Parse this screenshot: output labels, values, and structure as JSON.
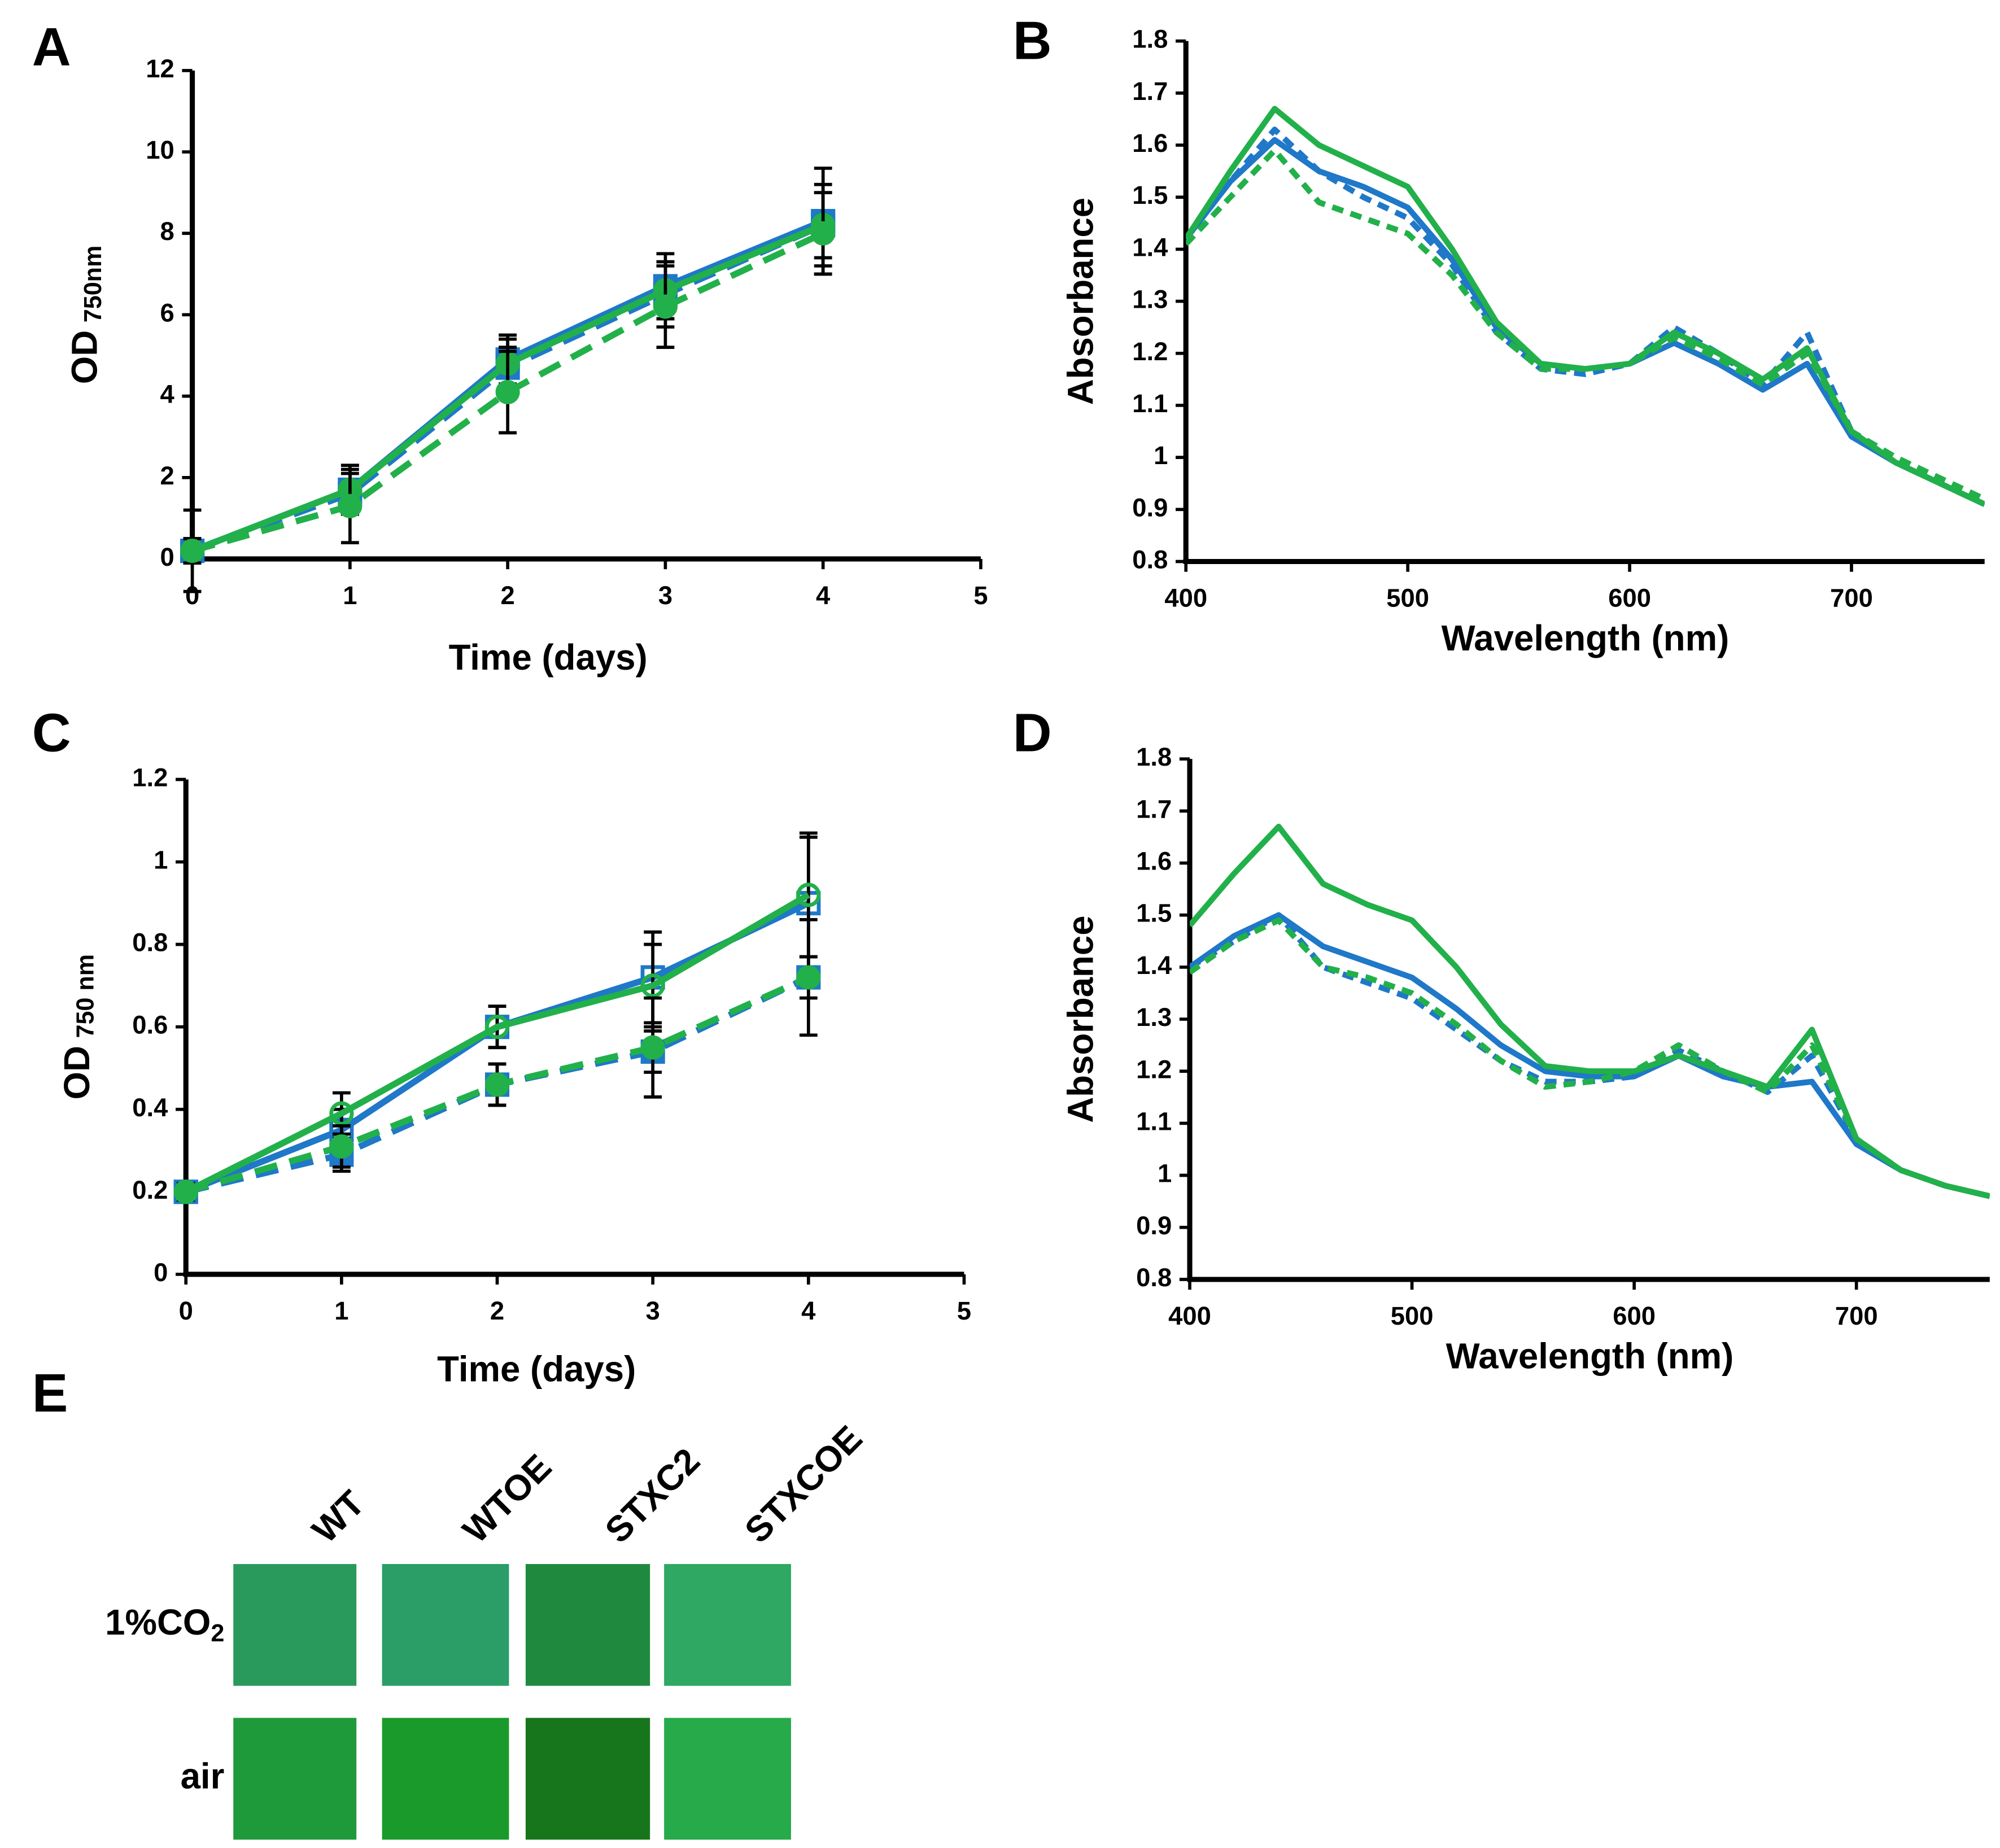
{
  "chart_data": [
    {
      "panel": "A",
      "type": "line",
      "x_label": "Time (days)",
      "y_label": "OD",
      "y_label_sub": "750nm",
      "x": [
        0,
        1,
        2,
        3,
        4
      ],
      "xlim": [
        0,
        5
      ],
      "xticks": [
        0,
        1,
        2,
        3,
        4,
        5
      ],
      "ylim": [
        0,
        12
      ],
      "yticks": [
        0,
        2,
        4,
        6,
        8,
        10,
        12
      ],
      "series": [
        {
          "color": "#1f78c8",
          "dash": false,
          "marker": "square",
          "filled": true,
          "values": [
            0.2,
            1.7,
            4.9,
            6.7,
            8.3
          ],
          "errors": [
            1.0,
            0.6,
            0.6,
            0.8,
            1.3
          ]
        },
        {
          "color": "#1f78c8",
          "dash": true,
          "marker": "square",
          "filled": true,
          "values": [
            0.2,
            1.6,
            4.7,
            6.5,
            8.2
          ],
          "errors": [
            0.3,
            0.5,
            0.5,
            0.8,
            1.0
          ]
        },
        {
          "color": "#22b04a",
          "dash": false,
          "marker": "circle",
          "filled": true,
          "values": [
            0.2,
            1.7,
            4.8,
            6.6,
            8.2
          ],
          "errors": [
            0.3,
            0.6,
            0.6,
            0.7,
            0.8
          ]
        },
        {
          "color": "#22b04a",
          "dash": true,
          "marker": "circle",
          "filled": true,
          "values": [
            0.2,
            1.3,
            4.1,
            6.2,
            8.0
          ],
          "errors": [
            0.3,
            0.9,
            1.0,
            1.0,
            1.0
          ]
        }
      ]
    },
    {
      "panel": "B",
      "type": "line",
      "x_label": "Wavelength (nm)",
      "y_label": "Absorbance",
      "x": [
        400,
        420,
        440,
        460,
        480,
        500,
        520,
        540,
        560,
        580,
        600,
        620,
        640,
        660,
        680,
        700,
        720,
        740,
        760
      ],
      "xlim": [
        400,
        760
      ],
      "xticks": [
        400,
        500,
        600,
        700
      ],
      "ylim": [
        0.8,
        1.8
      ],
      "yticks": [
        0.8,
        0.9,
        1,
        1.1,
        1.2,
        1.3,
        1.4,
        1.5,
        1.6,
        1.7,
        1.8
      ],
      "series": [
        {
          "color": "#1f78c8",
          "dash": false,
          "values": [
            1.42,
            1.53,
            1.61,
            1.55,
            1.52,
            1.48,
            1.38,
            1.25,
            1.18,
            1.17,
            1.18,
            1.22,
            1.18,
            1.13,
            1.18,
            1.04,
            0.99,
            0.95,
            0.91
          ]
        },
        {
          "color": "#1f78c8",
          "dash": true,
          "values": [
            1.42,
            1.53,
            1.63,
            1.55,
            1.5,
            1.46,
            1.37,
            1.24,
            1.17,
            1.16,
            1.18,
            1.25,
            1.2,
            1.14,
            1.24,
            1.05,
            0.99,
            0.95,
            0.91
          ]
        },
        {
          "color": "#22b04a",
          "dash": false,
          "values": [
            1.42,
            1.55,
            1.67,
            1.6,
            1.56,
            1.52,
            1.4,
            1.26,
            1.18,
            1.17,
            1.18,
            1.24,
            1.2,
            1.15,
            1.21,
            1.05,
            0.99,
            0.95,
            0.91
          ]
        },
        {
          "color": "#22b04a",
          "dash": true,
          "values": [
            1.41,
            1.5,
            1.59,
            1.49,
            1.46,
            1.43,
            1.35,
            1.24,
            1.17,
            1.17,
            1.18,
            1.23,
            1.19,
            1.14,
            1.2,
            1.05,
            1.0,
            0.96,
            0.92
          ]
        }
      ]
    },
    {
      "panel": "C",
      "type": "line",
      "x_label": "Time (days)",
      "y_label": "OD",
      "y_label_sub": "750 nm",
      "x": [
        0,
        1,
        2,
        3,
        4
      ],
      "xlim": [
        0,
        5
      ],
      "xticks": [
        0,
        1,
        2,
        3,
        4,
        5
      ],
      "ylim": [
        0,
        1.2
      ],
      "yticks": [
        0,
        0.2,
        0.4,
        0.6,
        0.8,
        1,
        1.2
      ],
      "series": [
        {
          "color": "#1f78c8",
          "dash": false,
          "marker": "square",
          "filled": false,
          "values": [
            0.2,
            0.35,
            0.6,
            0.72,
            0.9
          ],
          "errors": [
            0.02,
            0.05,
            0.05,
            0.11,
            0.16
          ]
        },
        {
          "color": "#1f78c8",
          "dash": true,
          "marker": "square",
          "filled": true,
          "values": [
            0.2,
            0.29,
            0.46,
            0.54,
            0.72
          ],
          "errors": [
            0.02,
            0.04,
            0.05,
            0.05,
            0.05
          ]
        },
        {
          "color": "#22b04a",
          "dash": false,
          "marker": "circle",
          "filled": false,
          "values": [
            0.2,
            0.39,
            0.6,
            0.7,
            0.92
          ],
          "errors": [
            0.02,
            0.05,
            0.05,
            0.1,
            0.15
          ]
        },
        {
          "color": "#22b04a",
          "dash": true,
          "marker": "circle",
          "filled": true,
          "values": [
            0.2,
            0.31,
            0.46,
            0.55,
            0.72
          ],
          "errors": [
            0.02,
            0.05,
            0.05,
            0.12,
            0.14
          ]
        }
      ]
    },
    {
      "panel": "D",
      "type": "line",
      "x_label": "Wavelength (nm)",
      "y_label": "Absorbance",
      "x": [
        400,
        420,
        440,
        460,
        480,
        500,
        520,
        540,
        560,
        580,
        600,
        620,
        640,
        660,
        680,
        700,
        720,
        740,
        760
      ],
      "xlim": [
        400,
        760
      ],
      "xticks": [
        400,
        500,
        600,
        700
      ],
      "ylim": [
        0.8,
        1.8
      ],
      "yticks": [
        0.8,
        0.9,
        1,
        1.1,
        1.2,
        1.3,
        1.4,
        1.5,
        1.6,
        1.7,
        1.8
      ],
      "series": [
        {
          "color": "#1f78c8",
          "dash": false,
          "values": [
            1.4,
            1.46,
            1.5,
            1.44,
            1.41,
            1.38,
            1.32,
            1.25,
            1.2,
            1.19,
            1.19,
            1.23,
            1.19,
            1.17,
            1.18,
            1.06,
            1.01,
            0.98,
            0.96
          ]
        },
        {
          "color": "#1f78c8",
          "dash": true,
          "values": [
            1.4,
            1.45,
            1.5,
            1.4,
            1.37,
            1.34,
            1.28,
            1.22,
            1.18,
            1.18,
            1.19,
            1.24,
            1.2,
            1.16,
            1.23,
            1.07,
            1.01,
            0.98,
            0.96
          ]
        },
        {
          "color": "#22b04a",
          "dash": false,
          "values": [
            1.48,
            1.58,
            1.67,
            1.56,
            1.52,
            1.49,
            1.4,
            1.29,
            1.21,
            1.2,
            1.2,
            1.23,
            1.2,
            1.17,
            1.28,
            1.07,
            1.01,
            0.98,
            0.96
          ]
        },
        {
          "color": "#22b04a",
          "dash": true,
          "values": [
            1.39,
            1.45,
            1.49,
            1.4,
            1.38,
            1.35,
            1.29,
            1.22,
            1.17,
            1.18,
            1.2,
            1.25,
            1.2,
            1.16,
            1.25,
            1.07,
            1.01,
            0.98,
            0.96
          ]
        }
      ]
    }
  ],
  "panel_e": {
    "panel": "E",
    "columns": [
      "WT",
      "WTOE",
      "STXC2",
      "STXCOE"
    ],
    "rows": [
      {
        "label": "1%CO",
        "label_sub": "2",
        "colors": [
          "#2a9a5c",
          "#2a9e66",
          "#1f8a3e",
          "#2ea862"
        ]
      },
      {
        "label": "air",
        "colors": [
          "#1f9a3a",
          "#1a9a2a",
          "#17761c",
          "#27aa4a"
        ]
      }
    ]
  }
}
